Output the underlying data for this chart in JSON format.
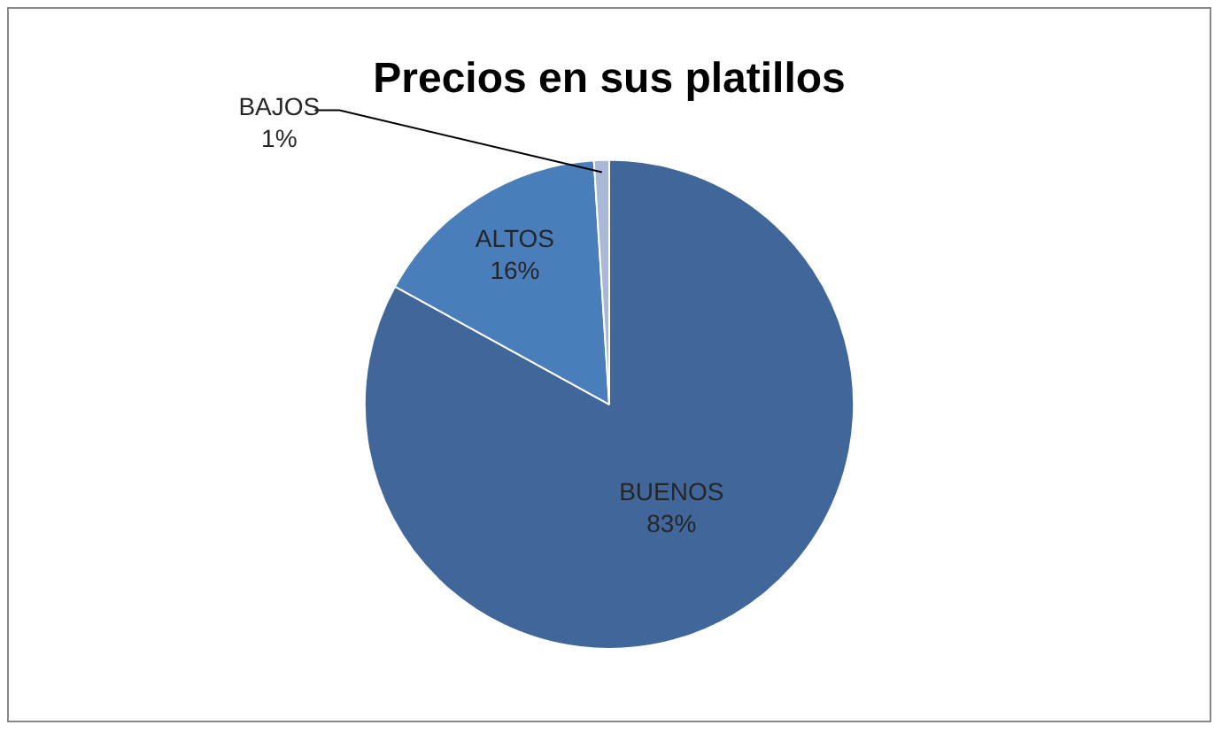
{
  "chart_data": {
    "type": "pie",
    "title": "Precios en sus platillos",
    "categories": [
      "BUENOS",
      "ALTOS",
      "BAJOS"
    ],
    "values": [
      83,
      16,
      1
    ],
    "colors": [
      "#41669a",
      "#4a7ebb",
      "#a9b8d4"
    ],
    "value_labels": [
      "83%",
      "16%",
      "1%"
    ],
    "legend": false
  }
}
